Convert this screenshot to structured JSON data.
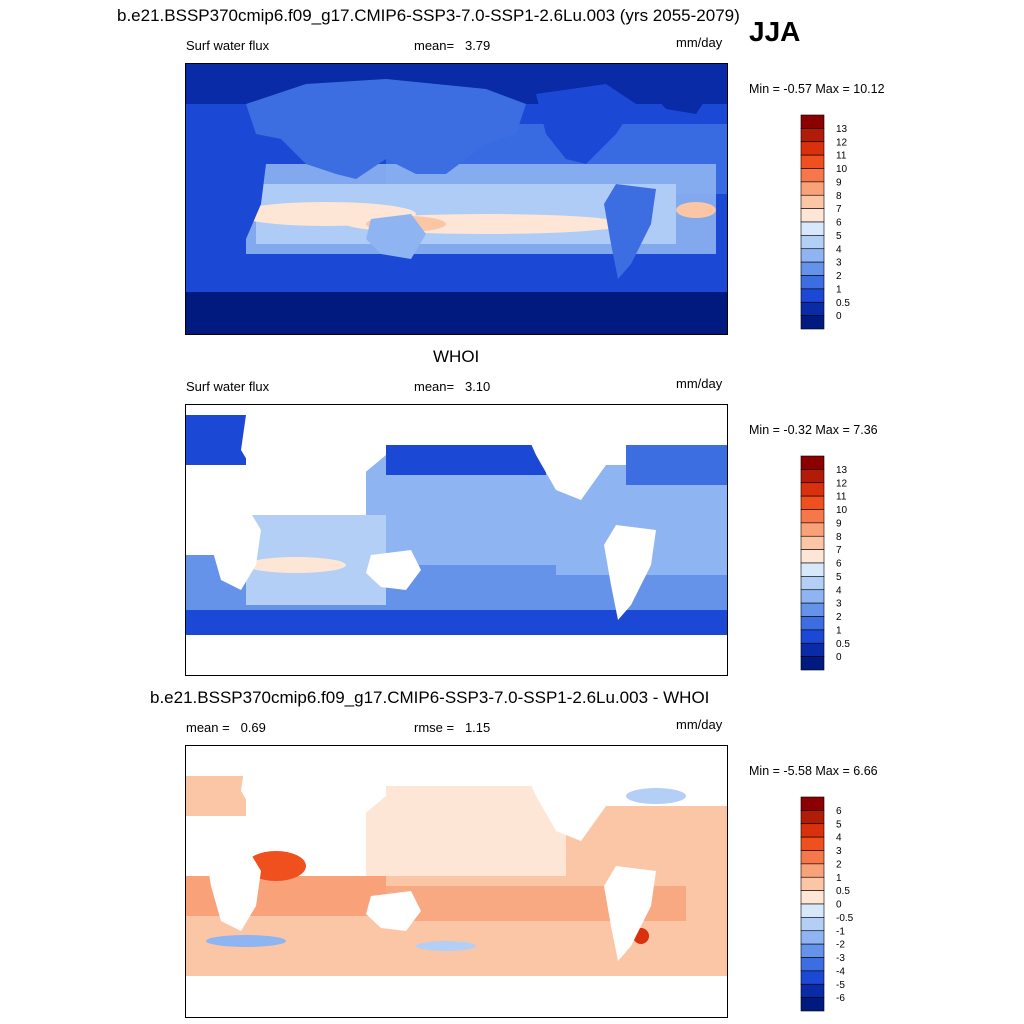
{
  "header": {
    "title": "b.e21.BSSP370cmip6.f09_g17.CMIP6-SSP3-7.0-SSP1-2.6Lu.003 (yrs 2055-2079)",
    "season": "JJA"
  },
  "panels": [
    {
      "id": "model",
      "title": "",
      "left_label": "Surf water flux",
      "stat_label": "mean=",
      "stat_value": "3.79",
      "units": "mm/day",
      "min_label": "Min =",
      "min_value": "-0.57",
      "max_label": "Max =",
      "max_value": "10.12",
      "colorbar_labels": [
        "13",
        "12",
        "11",
        "10",
        "9",
        "8",
        "7",
        "6",
        "5",
        "4",
        "3",
        "2",
        "1",
        "0.5",
        "0"
      ],
      "colorbar_colors": [
        "#8b0000",
        "#b01c08",
        "#d9300e",
        "#f04f1e",
        "#f6784a",
        "#f9a178",
        "#fbc6a6",
        "#fde6d6",
        "#d8e8fb",
        "#b3cff6",
        "#8eb4f1",
        "#6593ea",
        "#3c6ee2",
        "#1b48d4",
        "#0a2ba8",
        "#001a80"
      ]
    },
    {
      "id": "obs",
      "title": "WHOI",
      "left_label": "Surf water flux",
      "stat_label": "mean=",
      "stat_value": "3.10",
      "units": "mm/day",
      "min_label": "Min =",
      "min_value": "-0.32",
      "max_label": "Max =",
      "max_value": "7.36",
      "colorbar_labels": [
        "13",
        "12",
        "11",
        "10",
        "9",
        "8",
        "7",
        "6",
        "5",
        "4",
        "3",
        "2",
        "1",
        "0.5",
        "0"
      ],
      "colorbar_colors": [
        "#8b0000",
        "#b01c08",
        "#d9300e",
        "#f04f1e",
        "#f6784a",
        "#f9a178",
        "#fbc6a6",
        "#fde6d6",
        "#d8e8fb",
        "#b3cff6",
        "#8eb4f1",
        "#6593ea",
        "#3c6ee2",
        "#1b48d4",
        "#0a2ba8",
        "#001a80"
      ]
    },
    {
      "id": "diff",
      "title": "b.e21.BSSP370cmip6.f09_g17.CMIP6-SSP3-7.0-SSP1-2.6Lu.003 - WHOI",
      "left_label": "mean =",
      "left_value": "0.69",
      "stat_label": "rmse =",
      "stat_value": "1.15",
      "units": "mm/day",
      "min_label": "Min =",
      "min_value": "-5.58",
      "max_label": "Max =",
      "max_value": "6.66",
      "colorbar_labels": [
        "6",
        "5",
        "4",
        "3",
        "2",
        "1",
        "0.5",
        "0",
        "-0.5",
        "-1",
        "-2",
        "-3",
        "-4",
        "-5",
        "-6"
      ],
      "colorbar_colors": [
        "#8b0000",
        "#b01c08",
        "#d9300e",
        "#f04f1e",
        "#f6784a",
        "#f9a178",
        "#fbc6a6",
        "#fde6d6",
        "#d8e8fb",
        "#b3cff6",
        "#8eb4f1",
        "#6593ea",
        "#3c6ee2",
        "#1b48d4",
        "#0a2ba8",
        "#001a80"
      ]
    }
  ],
  "chart_data": [
    {
      "type": "heatmap",
      "title": "b.e21.BSSP370cmip6.f09_g17.CMIP6-SSP3-7.0-SSP1-2.6Lu.003 (yrs 2055-2079)",
      "variable": "Surf water flux",
      "units": "mm/day",
      "season": "JJA",
      "mean": 3.79,
      "min": -0.57,
      "max": 10.12,
      "levels": [
        0,
        0.5,
        1,
        2,
        3,
        4,
        5,
        6,
        7,
        8,
        9,
        10,
        11,
        12,
        13
      ]
    },
    {
      "type": "heatmap",
      "title": "WHOI",
      "variable": "Surf water flux",
      "units": "mm/day",
      "mean": 3.1,
      "min": -0.32,
      "max": 7.36,
      "levels": [
        0,
        0.5,
        1,
        2,
        3,
        4,
        5,
        6,
        7,
        8,
        9,
        10,
        11,
        12,
        13
      ]
    },
    {
      "type": "heatmap",
      "title": "b.e21.BSSP370cmip6.f09_g17.CMIP6-SSP3-7.0-SSP1-2.6Lu.003 - WHOI",
      "units": "mm/day",
      "mean": 0.69,
      "rmse": 1.15,
      "min": -5.58,
      "max": 6.66,
      "levels": [
        -6,
        -5,
        -4,
        -3,
        -2,
        -1,
        -0.5,
        0,
        0.5,
        1,
        2,
        3,
        4,
        5,
        6
      ]
    }
  ]
}
